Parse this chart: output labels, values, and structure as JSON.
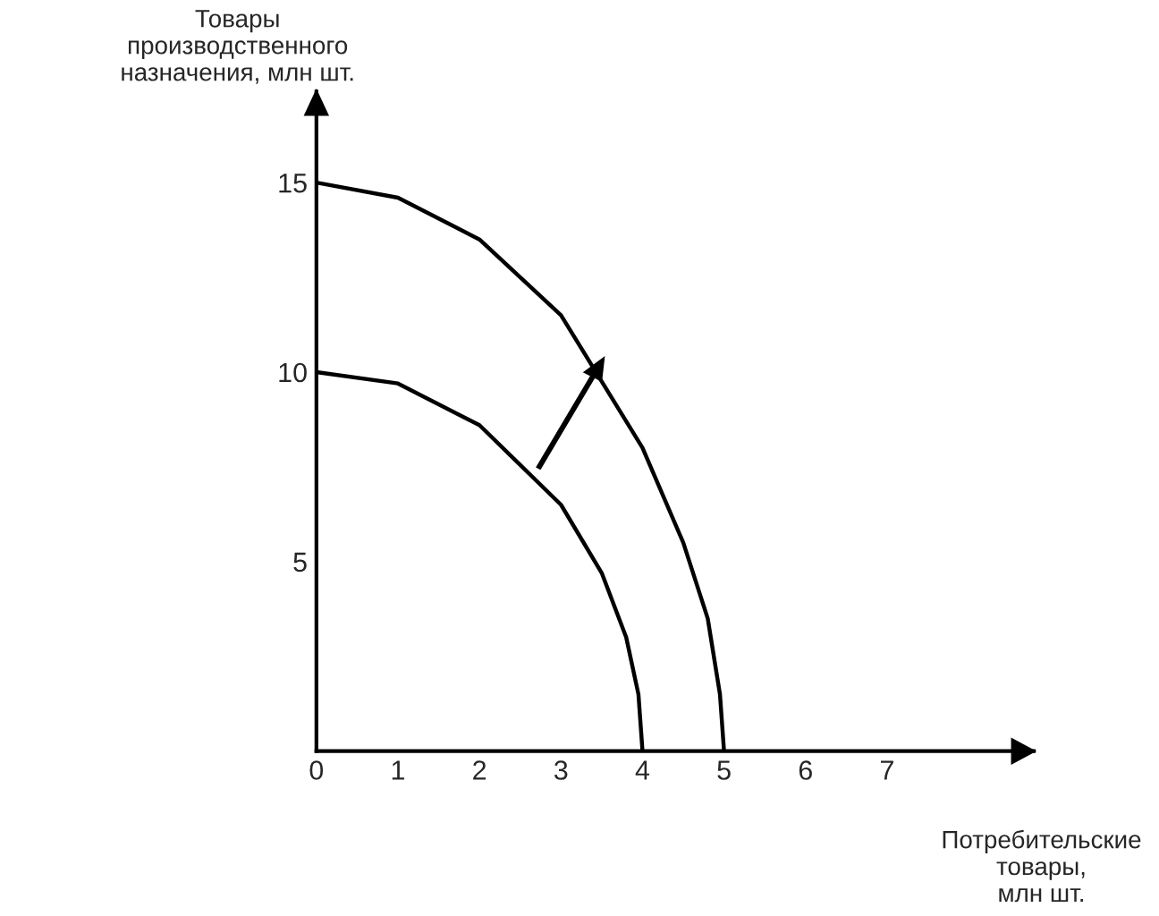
{
  "chart_data": {
    "type": "line",
    "xlabel": "Потребительские\nтовары,\nмлн шт.",
    "ylabel": "Товары\nпроизводственного\nназначения, млн шт.",
    "series": [
      {
        "color": "#000000",
        "x": [
          0,
          1,
          2,
          3,
          3.5,
          3.8,
          3.95,
          4
        ],
        "values": [
          10,
          9.7,
          8.6,
          6.5,
          4.7,
          3,
          1.5,
          0
        ]
      },
      {
        "color": "#000000",
        "x": [
          0,
          1,
          2,
          3,
          4,
          4.5,
          4.8,
          4.95,
          5
        ],
        "values": [
          15,
          14.6,
          13.5,
          11.5,
          8,
          5.5,
          3.5,
          1.5,
          0
        ]
      }
    ],
    "xlim": [
      0,
      8.8
    ],
    "ylim": [
      0,
      17.4
    ],
    "xticks": [
      0,
      1,
      2,
      3,
      4,
      5,
      6,
      7
    ],
    "yticks": [
      5,
      10,
      15
    ],
    "marker": "none",
    "line_style": "solid",
    "grid": false,
    "legend": false
  }
}
